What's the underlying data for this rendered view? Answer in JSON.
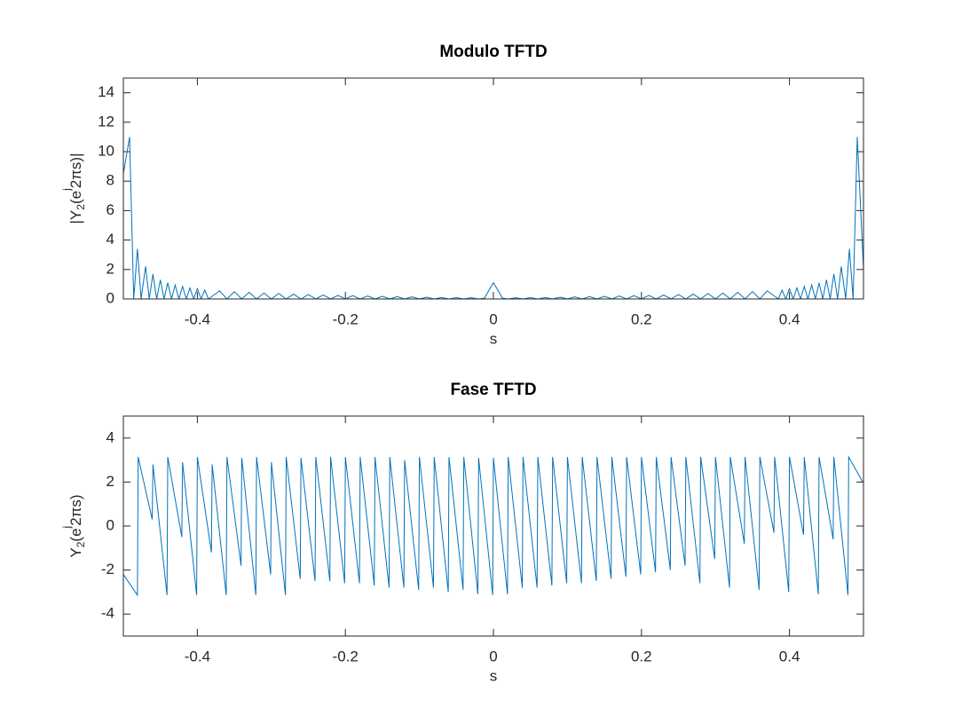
{
  "chart_data": [
    {
      "type": "line",
      "title": "Modulo TFTD",
      "xlabel": "s",
      "ylabel": [
        "|Y",
        "2",
        "(e",
        "j",
        "2πs)|"
      ],
      "color": "#0072bd",
      "grid": false,
      "xlim": [
        -0.5,
        0.5
      ],
      "xticks": [
        -0.4,
        -0.2,
        0,
        0.2,
        0.4
      ],
      "ylim": [
        0,
        15
      ],
      "yticks": [
        0,
        2,
        4,
        6,
        8,
        10,
        12,
        14
      ],
      "x": [
        -0.5,
        -0.4916,
        -0.486,
        -0.481,
        -0.476,
        -0.47,
        -0.465,
        -0.46,
        -0.455,
        -0.45,
        -0.445,
        -0.44,
        -0.435,
        -0.43,
        -0.425,
        -0.42,
        -0.415,
        -0.41,
        -0.405,
        -0.4,
        -0.395,
        -0.39,
        -0.385,
        -0.37,
        -0.36,
        -0.35,
        -0.34,
        -0.33,
        -0.32,
        -0.31,
        -0.3,
        -0.29,
        -0.28,
        -0.27,
        -0.26,
        -0.25,
        -0.24,
        -0.23,
        -0.22,
        -0.21,
        -0.2,
        -0.19,
        -0.18,
        -0.17,
        -0.16,
        -0.15,
        -0.14,
        -0.13,
        -0.12,
        -0.11,
        -0.1,
        -0.09,
        -0.08,
        -0.07,
        -0.06,
        -0.05,
        -0.04,
        -0.03,
        -0.02,
        -0.012,
        -0.006,
        0,
        0.006,
        0.012,
        0.02,
        0.03,
        0.04,
        0.05,
        0.06,
        0.07,
        0.08,
        0.09,
        0.1,
        0.11,
        0.12,
        0.13,
        0.14,
        0.15,
        0.16,
        0.17,
        0.18,
        0.19,
        0.2,
        0.21,
        0.22,
        0.23,
        0.24,
        0.25,
        0.26,
        0.27,
        0.28,
        0.29,
        0.3,
        0.31,
        0.32,
        0.33,
        0.34,
        0.35,
        0.36,
        0.37,
        0.385,
        0.39,
        0.395,
        0.4,
        0.405,
        0.41,
        0.415,
        0.42,
        0.425,
        0.43,
        0.435,
        0.44,
        0.445,
        0.45,
        0.455,
        0.46,
        0.465,
        0.47,
        0.476,
        0.481,
        0.486,
        0.4916,
        0.5
      ],
      "values": [
        8.5,
        11,
        0,
        3.4,
        0,
        2.2,
        0,
        1.7,
        0,
        1.3,
        0,
        1.1,
        0,
        0.95,
        0,
        0.85,
        0,
        0.75,
        0,
        0.7,
        0,
        0.6,
        0,
        0.55,
        0,
        0.5,
        0,
        0.45,
        0,
        0.4,
        0,
        0.37,
        0,
        0.33,
        0,
        0.3,
        0,
        0.27,
        0,
        0.24,
        0,
        0.22,
        0,
        0.2,
        0,
        0.18,
        0,
        0.16,
        0,
        0.14,
        0,
        0.12,
        0,
        0.1,
        0,
        0.09,
        0,
        0.08,
        0,
        0.05,
        0.6,
        1.1,
        0.6,
        0.05,
        0,
        0.08,
        0,
        0.09,
        0,
        0.1,
        0,
        0.12,
        0,
        0.14,
        0,
        0.16,
        0,
        0.18,
        0,
        0.2,
        0,
        0.22,
        0,
        0.24,
        0,
        0.27,
        0,
        0.3,
        0,
        0.33,
        0,
        0.37,
        0,
        0.4,
        0,
        0.45,
        0,
        0.5,
        0,
        0.55,
        0,
        0.6,
        0,
        0.7,
        0,
        0.75,
        0,
        0.85,
        0,
        0.95,
        0,
        1.1,
        0,
        1.3,
        0,
        1.7,
        0,
        2.2,
        0,
        3.4,
        0,
        11,
        2
      ]
    },
    {
      "type": "line",
      "title": "Fase TFTD",
      "xlabel": "s",
      "ylabel": [
        "Y",
        "2",
        "(e",
        "j",
        "2πs)"
      ],
      "color": "#0072bd",
      "grid": false,
      "xlim": [
        -0.5,
        0.5
      ],
      "xticks": [
        -0.4,
        -0.2,
        0,
        0.2,
        0.4
      ],
      "ylim": [
        -5,
        5
      ],
      "yticks": [
        -4,
        -2,
        0,
        2,
        4
      ],
      "x": [
        -0.5,
        -0.481,
        -0.48,
        -0.461,
        -0.46,
        -0.441,
        -0.44,
        -0.421,
        -0.42,
        -0.401,
        -0.4,
        -0.381,
        -0.38,
        -0.361,
        -0.36,
        -0.341,
        -0.34,
        -0.321,
        -0.32,
        -0.301,
        -0.3,
        -0.281,
        -0.28,
        -0.261,
        -0.26,
        -0.241,
        -0.24,
        -0.221,
        -0.22,
        -0.201,
        -0.2,
        -0.181,
        -0.18,
        -0.161,
        -0.16,
        -0.141,
        -0.14,
        -0.121,
        -0.12,
        -0.101,
        -0.1,
        -0.081,
        -0.08,
        -0.061,
        -0.06,
        -0.041,
        -0.04,
        -0.021,
        -0.02,
        -0.001,
        0,
        0.019,
        0.02,
        0.039,
        0.04,
        0.059,
        0.06,
        0.079,
        0.08,
        0.099,
        0.1,
        0.119,
        0.12,
        0.139,
        0.14,
        0.159,
        0.16,
        0.179,
        0.18,
        0.199,
        0.2,
        0.219,
        0.22,
        0.239,
        0.24,
        0.259,
        0.26,
        0.279,
        0.28,
        0.299,
        0.3,
        0.319,
        0.32,
        0.339,
        0.34,
        0.359,
        0.36,
        0.379,
        0.38,
        0.399,
        0.4,
        0.419,
        0.42,
        0.439,
        0.44,
        0.459,
        0.46,
        0.479,
        0.48,
        0.499
      ],
      "values": [
        -2.2,
        -3.14,
        3.14,
        0.3,
        2.8,
        -3.14,
        3.14,
        -0.5,
        2.9,
        -3.14,
        3.14,
        -1.2,
        2.8,
        -3.14,
        3.14,
        -1.8,
        3.1,
        -3.14,
        3.14,
        -2.2,
        2.9,
        -3.14,
        3.14,
        -2.4,
        3.1,
        -2.5,
        3.14,
        -2.5,
        3.14,
        -2.6,
        3.14,
        -2.6,
        3.14,
        -2.7,
        3.14,
        -2.8,
        3.14,
        -2.8,
        3.0,
        -2.9,
        3.14,
        -2.8,
        3.14,
        -3.0,
        3.14,
        -2.9,
        3.14,
        -3.1,
        3.1,
        -3.14,
        3.1,
        -3.1,
        3.14,
        -2.8,
        3.14,
        -2.8,
        3.14,
        -2.7,
        3.14,
        -2.6,
        3.14,
        -2.6,
        3.14,
        -2.5,
        3.14,
        -2.4,
        3.14,
        -2.3,
        3.14,
        -2.2,
        3.14,
        -2.1,
        3.14,
        -2.0,
        3.14,
        -1.8,
        3.14,
        -2.6,
        3.14,
        -1.5,
        3.14,
        -2.8,
        3.14,
        -0.8,
        3.14,
        -2.9,
        3.14,
        -0.3,
        3.14,
        -3.0,
        3.14,
        -0.4,
        3.14,
        -3.1,
        3.14,
        -0.6,
        3.14,
        -3.14,
        3.14,
        2.0
      ]
    }
  ]
}
